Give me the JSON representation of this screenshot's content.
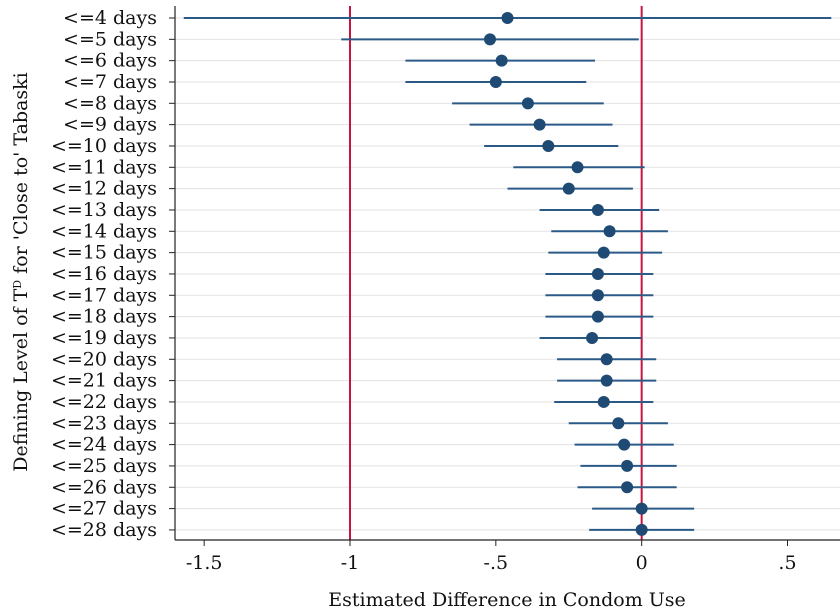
{
  "chart_data": {
    "type": "scatter",
    "subtype": "coefficient-plot",
    "title": "",
    "xlabel": "Estimated Difference in Condom Use",
    "ylabel_prefix": "Defining Level of T",
    "ylabel_superscript": "D",
    "ylabel_suffix": " for 'Close to' Tabaski",
    "xlim": [
      -1.6,
      0.68
    ],
    "xticks": [
      -1.5,
      -1,
      -0.5,
      0,
      0.5
    ],
    "xtick_labels": [
      "-1.5",
      "-1",
      "-.5",
      "0",
      ".5"
    ],
    "reference_lines": [
      -1,
      0
    ],
    "grid": "horizontal",
    "legend": "none",
    "colors": {
      "point": "#1f4a73",
      "ci": "#2b5a87",
      "reference": "#c8123f",
      "grid": "#e3e3e3",
      "axis": "#222222"
    },
    "categories": [
      "<=4 days",
      "<=5 days",
      "<=6 days",
      "<=7 days",
      "<=8 days",
      "<=9 days",
      "<=10 days",
      "<=11 days",
      "<=12 days",
      "<=13 days",
      "<=14 days",
      "<=15 days",
      "<=16 days",
      "<=17 days",
      "<=18 days",
      "<=19 days",
      "<=20 days",
      "<=21 days",
      "<=22 days",
      "<=23 days",
      "<=24 days",
      "<=25 days",
      "<=26 days",
      "<=27 days",
      "<=28 days"
    ],
    "series": [
      {
        "estimate": [
          -0.46,
          -0.52,
          -0.48,
          -0.5,
          -0.39,
          -0.35,
          -0.32,
          -0.22,
          -0.25,
          -0.15,
          -0.11,
          -0.13,
          -0.15,
          -0.15,
          -0.15,
          -0.17,
          -0.12,
          -0.12,
          -0.13,
          -0.08,
          -0.06,
          -0.05,
          -0.05,
          0.0,
          0.0
        ],
        "ci_low": [
          -1.57,
          -1.03,
          -0.81,
          -0.81,
          -0.65,
          -0.59,
          -0.54,
          -0.44,
          -0.46,
          -0.35,
          -0.31,
          -0.32,
          -0.33,
          -0.33,
          -0.33,
          -0.35,
          -0.29,
          -0.29,
          -0.3,
          -0.25,
          -0.23,
          -0.21,
          -0.22,
          -0.17,
          -0.18
        ],
        "ci_high": [
          0.65,
          -0.01,
          -0.16,
          -0.19,
          -0.13,
          -0.1,
          -0.08,
          0.01,
          -0.03,
          0.06,
          0.09,
          0.07,
          0.04,
          0.04,
          0.04,
          0.0,
          0.05,
          0.05,
          0.04,
          0.09,
          0.11,
          0.12,
          0.12,
          0.18,
          0.18
        ]
      }
    ]
  }
}
